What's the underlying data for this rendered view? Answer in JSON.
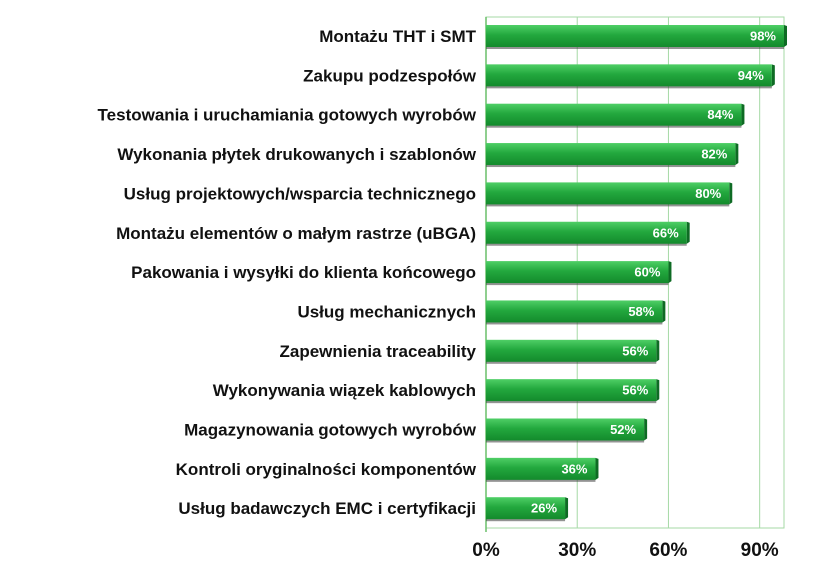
{
  "chart_data": {
    "type": "bar",
    "orientation": "horizontal",
    "categories": [
      "Montażu THT i SMT",
      "Zakupu podzespołów",
      "Testowania i uruchamiania gotowych wyrobów",
      "Wykonania płytek drukowanych i szablonów",
      "Usług projektowych/wsparcia technicznego",
      "Montażu elementów o małym rastrze (uBGA)",
      "Pakowania i wysyłki do klienta końcowego",
      "Usług mechanicznych",
      "Zapewnienia traceability",
      "Wykonywania wiązek kablowych",
      "Magazynowania gotowych wyrobów",
      "Kontroli oryginalności komponentów",
      "Usług badawczych EMC i certyfikacji"
    ],
    "values": [
      98,
      94,
      84,
      82,
      80,
      66,
      60,
      58,
      56,
      56,
      52,
      36,
      26
    ],
    "data_labels": [
      "98%",
      "94%",
      "84%",
      "82%",
      "80%",
      "66%",
      "60%",
      "58%",
      "56%",
      "56%",
      "52%",
      "36%",
      "26%"
    ],
    "xlim": [
      0,
      98
    ],
    "x_ticks": [
      0,
      30,
      60,
      90
    ],
    "x_tick_labels": [
      "0%",
      "30%",
      "60%",
      "90%"
    ],
    "title": "",
    "xlabel": "",
    "ylabel": "",
    "grid": "vertical",
    "colors": {
      "bar": "#1fa33a",
      "bar_light": "#45c25a",
      "bar_dark": "#0e6b24",
      "grid": "#a6d9a6",
      "axis": "#6abf6a"
    }
  }
}
